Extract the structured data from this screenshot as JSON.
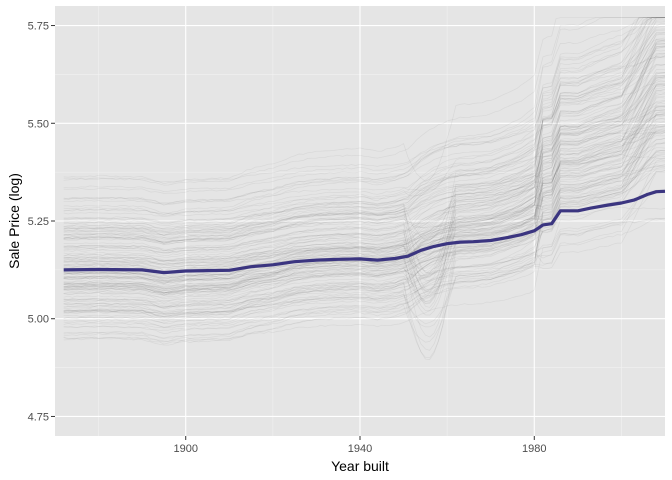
{
  "chart_data": {
    "type": "line",
    "title": "",
    "xlabel": "Year built",
    "ylabel": "Sale Price (log)",
    "xlim": [
      1870,
      2010
    ],
    "ylim": [
      4.7,
      5.8
    ],
    "x_ticks": [
      1900,
      1940,
      1980
    ],
    "y_ticks": [
      4.75,
      5.0,
      5.25,
      5.5,
      5.75
    ],
    "y_tick_labels": [
      "4.75",
      "5.00",
      "5.25",
      "5.50",
      "5.75"
    ],
    "grid": true,
    "legend": "none",
    "colors": {
      "panel": "#e5e5e5",
      "grid_major": "#ffffff",
      "ice_lines": "#5a5a5a",
      "average_line": "#3b3580",
      "tick": "#333333"
    },
    "ice_curves": {
      "count": 150,
      "opacity": 0.09,
      "start_level_range": [
        4.82,
        5.4
      ],
      "end_level_range": [
        5.1,
        5.77
      ]
    },
    "series": [
      {
        "x": [
          1872,
          1880,
          1890,
          1895,
          1900,
          1905,
          1910,
          1915,
          1920,
          1925,
          1930,
          1935,
          1940,
          1944,
          1948,
          1951,
          1954,
          1957,
          1960,
          1963,
          1966,
          1970,
          1974,
          1977,
          1980,
          1982,
          1984,
          1986,
          1990,
          1993,
          1997,
          2000,
          2003,
          2006,
          2008,
          2010
        ],
        "y": [
          5.125,
          5.126,
          5.125,
          5.118,
          5.122,
          5.123,
          5.124,
          5.133,
          5.138,
          5.146,
          5.15,
          5.152,
          5.153,
          5.15,
          5.154,
          5.16,
          5.175,
          5.185,
          5.192,
          5.196,
          5.197,
          5.2,
          5.208,
          5.215,
          5.225,
          5.24,
          5.243,
          5.276,
          5.276,
          5.283,
          5.291,
          5.296,
          5.304,
          5.318,
          5.325,
          5.326
        ]
      }
    ]
  }
}
